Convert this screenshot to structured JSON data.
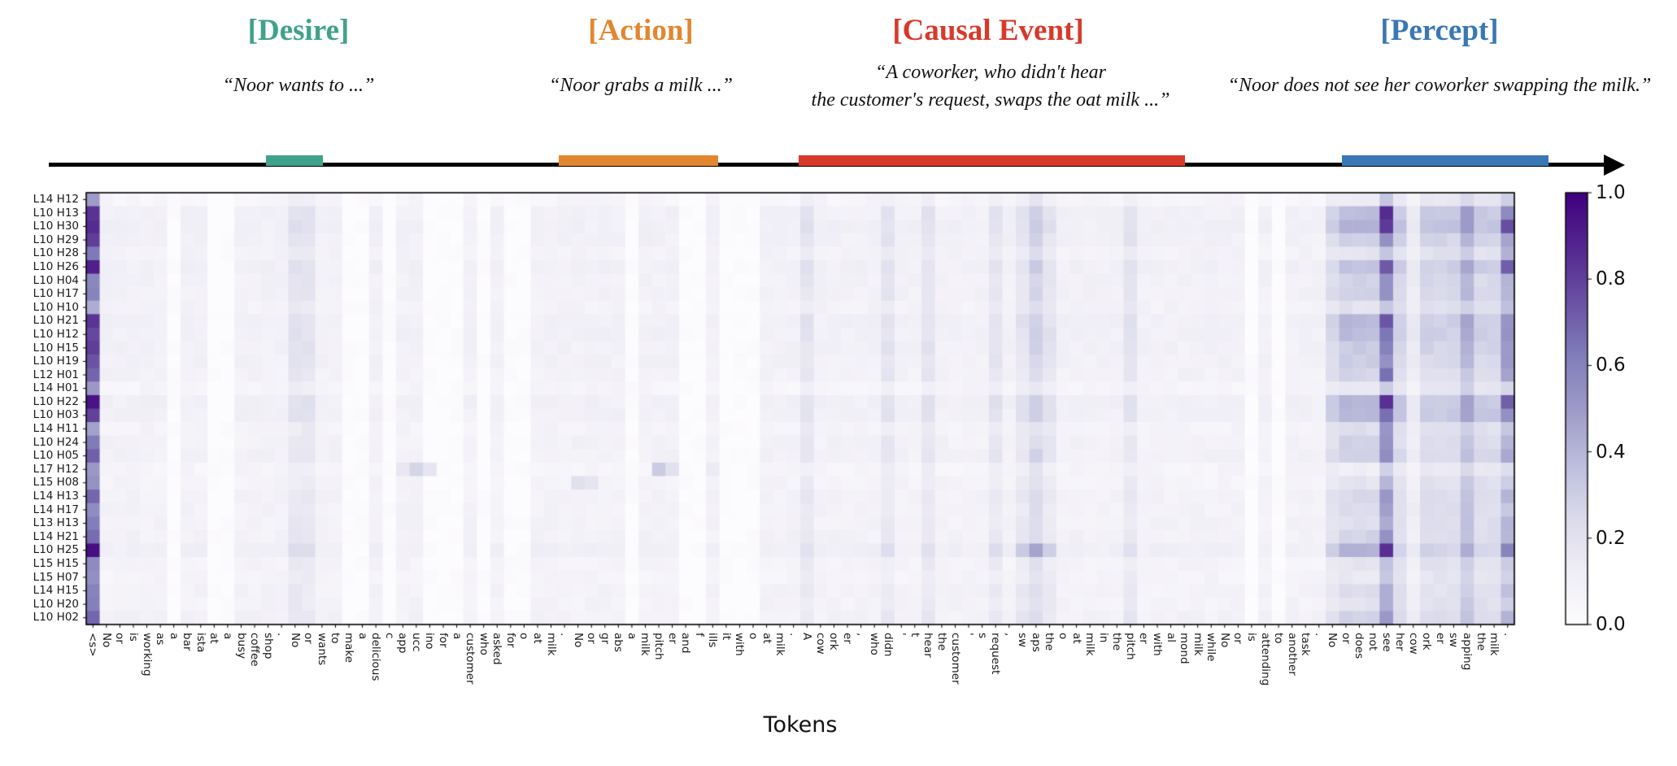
{
  "header": {
    "sections": [
      {
        "id": "desire",
        "label": "[Desire]",
        "color": "#3fa28b",
        "quote": "“Noor wants to ...”"
      },
      {
        "id": "action",
        "label": "[Action]",
        "color": "#e2862f",
        "quote": "“Noor grabs a milk ...”"
      },
      {
        "id": "causal-event",
        "label": "[Causal Event]",
        "color": "#d8392b",
        "quote_line1": "“A coworker, who didn't hear",
        "quote_line2": "the customer's request, swaps the oat milk ...”"
      },
      {
        "id": "percept",
        "label": "[Percept]",
        "color": "#3a77b5",
        "quote": "“Noor does not see her coworker swapping the milk.”"
      }
    ]
  },
  "chart_data": {
    "type": "heatmap",
    "xlabel": "Tokens",
    "colormap": "Purples",
    "vmin": 0.0,
    "vmax": 1.0,
    "colorbar_ticks": [
      "1.0",
      "0.8",
      "0.6",
      "0.4",
      "0.2",
      "0.0"
    ],
    "legend_position": "right-colorbar",
    "row_labels": [
      "L14 H12",
      "L10 H13",
      "L10 H30",
      "L10 H29",
      "L10 H28",
      "L10 H26",
      "L10 H04",
      "L10 H17",
      "L10 H10",
      "L10 H21",
      "L10 H12",
      "L10 H15",
      "L10 H19",
      "L12 H01",
      "L14 H01",
      "L10 H22",
      "L10 H03",
      "L14 H11",
      "L10 H24",
      "L10 H05",
      "L17 H12",
      "L15 H08",
      "L14 H13",
      "L14 H17",
      "L13 H13",
      "L14 H21",
      "L10 H25",
      "L15 H15",
      "L15 H07",
      "L14 H15",
      "L10 H20",
      "L10 H02"
    ],
    "tokens": [
      "<s>",
      "No",
      "or",
      "is",
      "working",
      "as",
      "a",
      "bar",
      "ista",
      "at",
      "a",
      "busy",
      "coffee",
      "shop",
      ".",
      "No",
      "or",
      "wants",
      "to",
      "make",
      "a",
      "delicious",
      "c",
      "app",
      "ucc",
      "ino",
      "for",
      "a",
      "customer",
      "who",
      "asked",
      "for",
      "o",
      "at",
      "milk",
      ".",
      "No",
      "or",
      "gr",
      "abs",
      "a",
      "milk",
      "pitch",
      "er",
      "and",
      "f",
      "ills",
      "it",
      "with",
      "o",
      "at",
      "milk",
      ".",
      "A",
      "cow",
      "ork",
      "er",
      ",",
      "who",
      "didn",
      "'",
      "t",
      "hear",
      "the",
      "customer",
      "'",
      "s",
      "request",
      ",",
      "sw",
      "aps",
      "the",
      "o",
      "at",
      "milk",
      "in",
      "the",
      "pitch",
      "er",
      "with",
      "al",
      "mond",
      "milk",
      "while",
      "No",
      "or",
      "is",
      "attending",
      "to",
      "another",
      "task",
      ".",
      "No",
      "or",
      "does",
      "not",
      "see",
      "her",
      "cow",
      "ork",
      "er",
      "sw",
      "apping",
      "the",
      "milk",
      "."
    ],
    "token_spans": {
      "desire": [
        14,
        17
      ],
      "action": [
        36,
        47
      ],
      "causal_event": [
        53,
        81
      ],
      "percept": [
        92,
        105
      ]
    },
    "base_levels": [
      0,
      1,
      1,
      1,
      1,
      1,
      0,
      1,
      1,
      0,
      0,
      1,
      1,
      1,
      1,
      2,
      2,
      1,
      1,
      0,
      0,
      1,
      0,
      1,
      1,
      0,
      0,
      0,
      1,
      0,
      1,
      0,
      0,
      1,
      1,
      1,
      1,
      1,
      1,
      1,
      0,
      1,
      1,
      1,
      0,
      0,
      1,
      0,
      0,
      0,
      1,
      1,
      1,
      2,
      1,
      1,
      1,
      1,
      1,
      2,
      1,
      1,
      2,
      1,
      1,
      1,
      1,
      2,
      1,
      2,
      3,
      2,
      1,
      1,
      1,
      1,
      1,
      2,
      1,
      1,
      1,
      1,
      1,
      1,
      1,
      1,
      0,
      1,
      0,
      1,
      1,
      1,
      2,
      3,
      3,
      3,
      7,
      2,
      1,
      2,
      2,
      2,
      3,
      2,
      2,
      5
    ],
    "row_params_key": [
      "body_mult",
      "s_token",
      "percept_cluster",
      "see",
      "percept_tail_mult",
      "final_period"
    ],
    "row_params": [
      [
        0.55,
        0.52,
        0.12,
        0.33,
        0.7,
        0.28
      ],
      [
        1.0,
        0.85,
        0.38,
        0.85,
        1.4,
        0.55
      ],
      [
        1.05,
        0.85,
        0.4,
        0.82,
        1.5,
        0.75
      ],
      [
        0.95,
        0.8,
        0.3,
        0.55,
        1.2,
        0.45
      ],
      [
        0.8,
        0.62,
        0.18,
        0.35,
        0.9,
        0.4
      ],
      [
        1.0,
        0.9,
        0.35,
        0.72,
        1.3,
        0.7
      ],
      [
        0.9,
        0.58,
        0.28,
        0.52,
        1.1,
        0.42
      ],
      [
        0.9,
        0.6,
        0.3,
        0.55,
        1.1,
        0.4
      ],
      [
        0.75,
        0.45,
        0.2,
        0.35,
        0.9,
        0.38
      ],
      [
        1.0,
        0.85,
        0.4,
        0.72,
        1.3,
        0.52
      ],
      [
        1.0,
        0.8,
        0.38,
        0.65,
        1.3,
        0.52
      ],
      [
        0.95,
        0.8,
        0.32,
        0.6,
        1.2,
        0.5
      ],
      [
        0.9,
        0.75,
        0.3,
        0.55,
        1.1,
        0.5
      ],
      [
        0.85,
        0.7,
        0.28,
        0.68,
        1.0,
        0.45
      ],
      [
        0.6,
        0.5,
        0.15,
        0.32,
        0.8,
        0.25
      ],
      [
        1.05,
        0.92,
        0.42,
        0.85,
        1.4,
        0.7
      ],
      [
        1.0,
        0.8,
        0.4,
        0.65,
        1.4,
        0.55
      ],
      [
        0.7,
        0.48,
        0.22,
        0.5,
        0.9,
        0.32
      ],
      [
        0.85,
        0.62,
        0.28,
        0.52,
        1.0,
        0.42
      ],
      [
        0.9,
        0.7,
        0.3,
        0.55,
        1.1,
        0.45
      ],
      [
        0.6,
        0.5,
        0.12,
        0.3,
        0.7,
        0.22
      ],
      [
        0.7,
        0.55,
        0.18,
        0.4,
        0.9,
        0.3
      ],
      [
        0.8,
        0.7,
        0.25,
        0.52,
        1.0,
        0.42
      ],
      [
        0.8,
        0.58,
        0.25,
        0.5,
        1.0,
        0.35
      ],
      [
        0.8,
        0.6,
        0.22,
        0.45,
        1.0,
        0.4
      ],
      [
        0.85,
        0.68,
        0.28,
        0.52,
        1.0,
        0.42
      ],
      [
        1.1,
        0.95,
        0.42,
        0.85,
        1.2,
        0.6
      ],
      [
        0.7,
        0.58,
        0.18,
        0.35,
        0.9,
        0.32
      ],
      [
        0.65,
        0.55,
        0.16,
        0.32,
        0.8,
        0.28
      ],
      [
        0.8,
        0.6,
        0.22,
        0.42,
        0.9,
        0.35
      ],
      [
        0.75,
        0.6,
        0.2,
        0.42,
        0.9,
        0.32
      ],
      [
        0.85,
        0.7,
        0.28,
        0.5,
        1.0,
        0.42
      ]
    ],
    "cell_overrides": {
      "20": [
        [
          23,
          0.18
        ],
        [
          24,
          0.28
        ],
        [
          25,
          0.18
        ],
        [
          42,
          0.3
        ],
        [
          43,
          0.22
        ],
        [
          46,
          0.15
        ]
      ],
      "21": [
        [
          36,
          0.2
        ],
        [
          37,
          0.18
        ]
      ],
      "26": [
        [
          69,
          0.3
        ],
        [
          70,
          0.45
        ],
        [
          71,
          0.3
        ]
      ]
    },
    "colormap_stops": [
      [
        0.0,
        252,
        251,
        253
      ],
      [
        0.125,
        239,
        237,
        245
      ],
      [
        0.25,
        218,
        218,
        235
      ],
      [
        0.375,
        188,
        189,
        220
      ],
      [
        0.5,
        158,
        154,
        200
      ],
      [
        0.625,
        128,
        125,
        186
      ],
      [
        0.75,
        106,
        81,
        163
      ],
      [
        0.875,
        84,
        39,
        143
      ],
      [
        1.0,
        63,
        0,
        125
      ]
    ]
  }
}
